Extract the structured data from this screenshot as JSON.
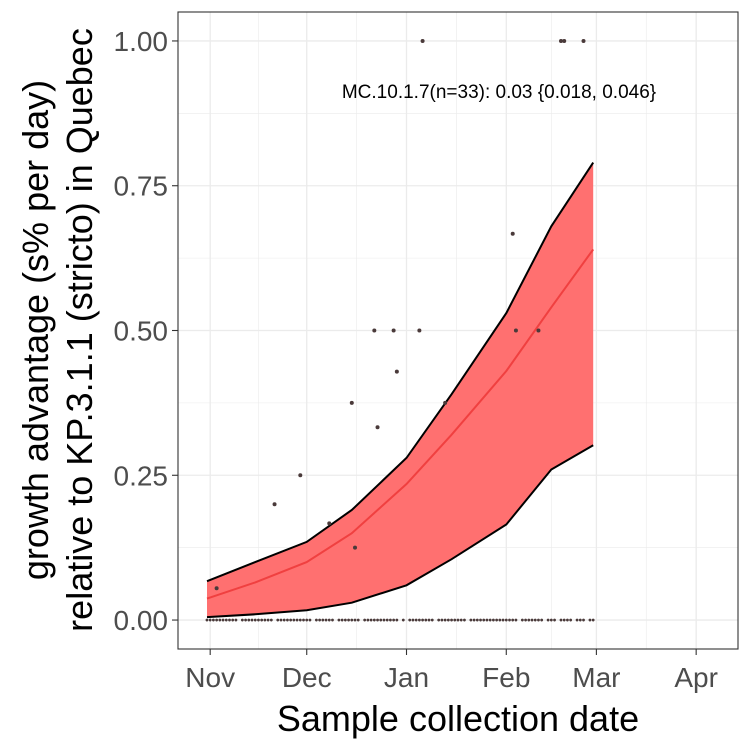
{
  "chart_data": {
    "type": "line",
    "xlabel": "Sample collection date",
    "ylabel_lines": [
      "growth advantage (s% per day)",
      "relative to KP.3.1.1 (stricto) in Quebec"
    ],
    "annotation": "MC.10.1.7(n=33): 0.03 {0.018, 0.046}",
    "x_ticks": [
      "Nov",
      "Dec",
      "Jan",
      "Feb",
      "Mar",
      "Apr"
    ],
    "x_tick_dates": [
      "2024-11-01",
      "2024-12-01",
      "2025-01-01",
      "2025-02-01",
      "2025-03-01",
      "2025-04-01"
    ],
    "y_ticks": [
      "0.00",
      "0.25",
      "0.50",
      "0.75",
      "1.00"
    ],
    "y_tick_values": [
      0,
      0.25,
      0.5,
      0.75,
      1.0
    ],
    "xlim": [
      "2024-10-22",
      "2025-04-14"
    ],
    "ylim": [
      -0.05,
      1.05
    ],
    "grid": true,
    "colors": {
      "ribbon": "#ff7070",
      "fit_line": "#f04040",
      "ribbon_border": "#000000",
      "points": "#4a3a3a",
      "grid": "#ebebeb",
      "panel_border": "#333333"
    },
    "fit": {
      "dates": [
        "2024-10-31",
        "2024-11-15",
        "2024-12-01",
        "2024-12-15",
        "2025-01-01",
        "2025-01-15",
        "2025-02-01",
        "2025-02-15",
        "2025-02-28"
      ],
      "mid": [
        0.037,
        0.065,
        0.1,
        0.15,
        0.235,
        0.32,
        0.43,
        0.54,
        0.64
      ],
      "lower": [
        0.005,
        0.01,
        0.017,
        0.03,
        0.06,
        0.105,
        0.165,
        0.26,
        0.302
      ],
      "upper": [
        0.067,
        0.1,
        0.135,
        0.19,
        0.28,
        0.39,
        0.53,
        0.68,
        0.79
      ]
    },
    "points": [
      {
        "date": "2024-11-03",
        "value": 0.055
      },
      {
        "date": "2024-11-21",
        "value": 0.2
      },
      {
        "date": "2024-11-29",
        "value": 0.25
      },
      {
        "date": "2024-12-08",
        "value": 0.167
      },
      {
        "date": "2024-12-15",
        "value": 0.375
      },
      {
        "date": "2024-12-16",
        "value": 0.125
      },
      {
        "date": "2024-12-22",
        "value": 0.5
      },
      {
        "date": "2024-12-23",
        "value": 0.333
      },
      {
        "date": "2024-12-28",
        "value": 0.5
      },
      {
        "date": "2024-12-29",
        "value": 0.429
      },
      {
        "date": "2025-01-05",
        "value": 0.5
      },
      {
        "date": "2025-01-06",
        "value": 1.0
      },
      {
        "date": "2025-01-13",
        "value": 0.375
      },
      {
        "date": "2025-02-03",
        "value": 0.667
      },
      {
        "date": "2025-02-04",
        "value": 0.5
      },
      {
        "date": "2025-02-11",
        "value": 0.5
      },
      {
        "date": "2025-02-18",
        "value": 1.0
      },
      {
        "date": "2025-02-19",
        "value": 1.0
      },
      {
        "date": "2025-02-25",
        "value": 1.0
      }
    ],
    "zero_points": {
      "start": "2024-10-31",
      "end": "2025-02-28",
      "value": 0,
      "gap_days": [
        10,
        21,
        33,
        40,
        48,
        60,
        62,
        71,
        81,
        97,
        105,
        109,
        114,
        118
      ]
    }
  }
}
